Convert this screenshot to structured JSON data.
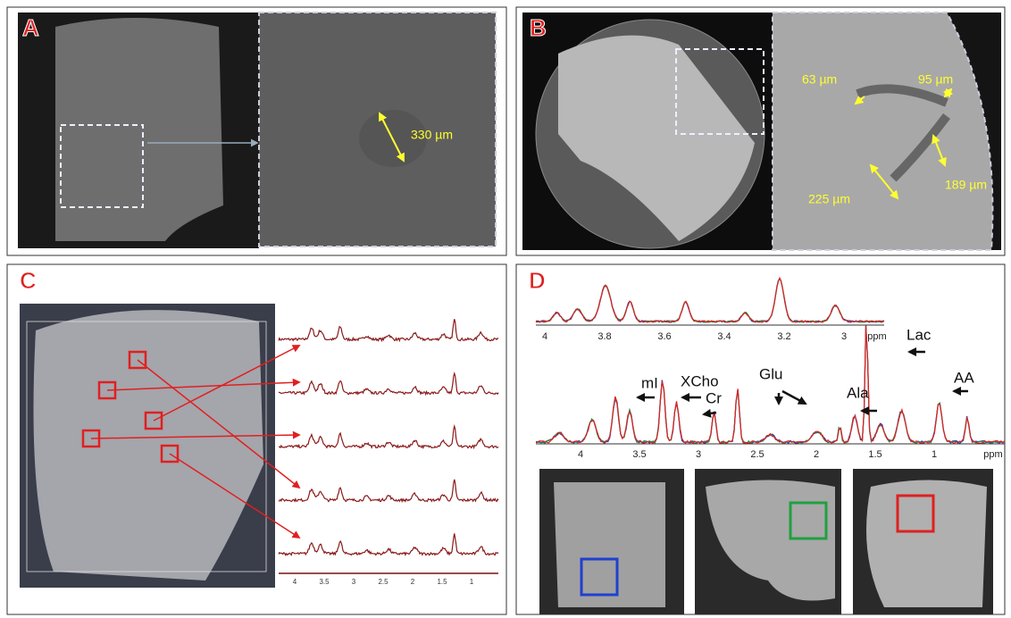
{
  "panels": {
    "A": {
      "label": "A",
      "annotations": [
        "330 µm"
      ]
    },
    "B": {
      "label": "B",
      "annotations": [
        "63 µm",
        "95 µm",
        "189 µm",
        "225 µm"
      ]
    },
    "C": {
      "label": "C",
      "axis_ticks": [
        4,
        3.5,
        3,
        2.5,
        2,
        1.5,
        1
      ]
    },
    "D": {
      "label": "D",
      "top_axis_ticks": [
        4,
        3.8,
        3.6,
        3.4,
        3.2,
        3
      ],
      "top_axis_unit": "ppm",
      "axis_ticks": [
        4,
        3.5,
        3,
        2.5,
        2,
        1.5,
        1
      ],
      "axis_unit": "ppm",
      "peak_labels": [
        "mI",
        "XCho",
        "Cr",
        "Glu",
        "Ala",
        "Lac",
        "AA"
      ]
    }
  }
}
